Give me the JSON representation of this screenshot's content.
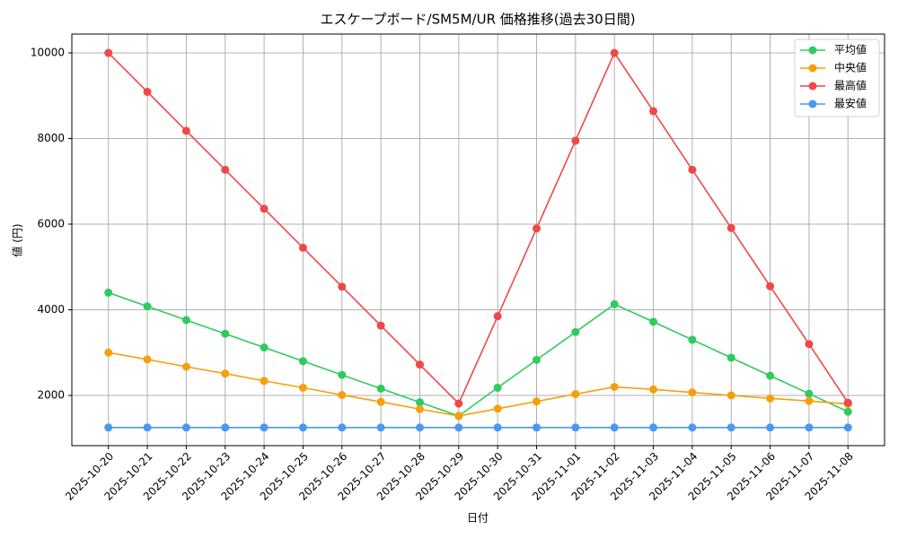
{
  "chart_data": {
    "type": "line",
    "title": "エスケープボード/SM5M/UR 価格推移(過去30日間)",
    "x_label": "日付",
    "y_label": "値 (円)",
    "categories": [
      "2025-10-20",
      "2025-10-21",
      "2025-10-22",
      "2025-10-23",
      "2025-10-24",
      "2025-10-25",
      "2025-10-26",
      "2025-10-27",
      "2025-10-28",
      "2025-10-29",
      "2025-10-30",
      "2025-10-31",
      "2025-11-01",
      "2025-11-02",
      "2025-11-03",
      "2025-11-04",
      "2025-11-05",
      "2025-11-06",
      "2025-11-07",
      "2025-11-08"
    ],
    "series": [
      {
        "name": "平均値",
        "color": "#2ecc5f",
        "values": [
          4400,
          4080,
          3760,
          3440,
          3120,
          2800,
          2480,
          2160,
          1840,
          1520,
          2180,
          2830,
          3480,
          4130,
          3720,
          3300,
          2880,
          2460,
          2040,
          1620
        ]
      },
      {
        "name": "中央値",
        "color": "#f5a00a",
        "values": [
          3000,
          2840,
          2670,
          2510,
          2340,
          2180,
          2010,
          1850,
          1680,
          1520,
          1690,
          1860,
          2030,
          2200,
          2140,
          2070,
          2000,
          1930,
          1870,
          1800
        ]
      },
      {
        "name": "最高値",
        "color": "#f04848",
        "values": [
          10000,
          9090,
          8180,
          7270,
          6360,
          5450,
          4540,
          3630,
          2720,
          1810,
          3850,
          5900,
          7950,
          10000,
          8640,
          7270,
          5910,
          4550,
          3200,
          1830
        ]
      },
      {
        "name": "最安値",
        "color": "#4a98f0",
        "values": [
          1250,
          1250,
          1250,
          1250,
          1250,
          1250,
          1250,
          1250,
          1250,
          1250,
          1250,
          1250,
          1250,
          1250,
          1250,
          1250,
          1250,
          1250,
          1250,
          1250
        ]
      }
    ],
    "ylim": [
      827,
      10440
    ],
    "yticks": [
      2000,
      4000,
      6000,
      8000,
      10000
    ],
    "grid": true,
    "legend": "upper right"
  }
}
